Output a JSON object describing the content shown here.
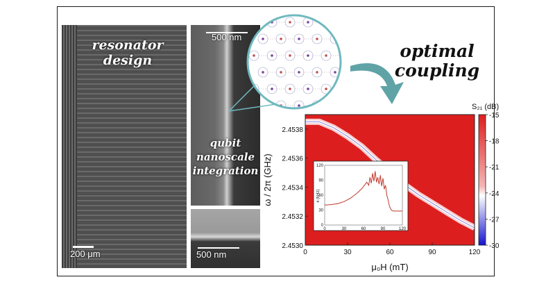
{
  "labels": {
    "resonator": [
      "resonator",
      "design"
    ],
    "qubit": [
      "qubit",
      "nanoscale",
      "integration"
    ],
    "title": [
      "optimal",
      "coupling"
    ]
  },
  "scale_bars": {
    "resonator": "200 μm",
    "qubit_top": "500 nm",
    "qubit_bottom": "500 nm"
  },
  "colors": {
    "heatmap_background": "#dd1e1e",
    "arrow": "#5fa3a7",
    "circle_border": "#6fb9bf",
    "dispersion_line": "#ffffff",
    "inset_line": "#c0392b"
  },
  "chart_data": [
    {
      "type": "heatmap",
      "title": "",
      "xlabel": "μ₀H (mT)",
      "ylabel": "ω / 2π (GHz)",
      "xlim": [
        0,
        120
      ],
      "ylim": [
        2.453,
        2.4539
      ],
      "x_ticks": [
        "0",
        "30",
        "60",
        "90",
        "120"
      ],
      "y_ticks": [
        "2.4530",
        "2.4532",
        "2.4534",
        "2.4536",
        "2.4538"
      ],
      "colorbar": {
        "label": "S₂₁ (dB)",
        "range": [
          -30,
          -15
        ],
        "ticks": [
          "-15",
          "-18",
          "-21",
          "-24",
          "-27",
          "-30"
        ],
        "colors": [
          "#dd1e1e",
          "#ffffff",
          "#1515cc"
        ]
      },
      "resonance_curve": {
        "x": [
          0,
          10,
          20,
          30,
          40,
          50,
          60,
          70,
          80,
          90,
          100,
          110,
          120
        ],
        "y": [
          2.45385,
          2.45385,
          2.45381,
          2.45375,
          2.45368,
          2.45359,
          2.45351,
          2.45342,
          2.45335,
          2.45329,
          2.45323,
          2.45317,
          2.45312
        ]
      }
    },
    {
      "type": "line",
      "title": "",
      "xlabel": "",
      "ylabel": "κ (kHz)",
      "xlim": [
        0,
        120
      ],
      "ylim": [
        0,
        120
      ],
      "x_ticks": [
        "0",
        "30",
        "60",
        "90",
        "120"
      ],
      "y_ticks": [
        "0",
        "30",
        "60",
        "90",
        "120"
      ],
      "series": [
        {
          "x": [
            0,
            10,
            20,
            30,
            40,
            50,
            58,
            65,
            68,
            70,
            72,
            74,
            76,
            78,
            80,
            82,
            84,
            86,
            88,
            90,
            92,
            94,
            96,
            98,
            100,
            103,
            106,
            110,
            115,
            120
          ],
          "y": [
            40,
            41,
            43,
            47,
            54,
            64,
            74,
            86,
            80,
            96,
            84,
            104,
            88,
            108,
            86,
            96,
            82,
            100,
            78,
            94,
            72,
            80,
            60,
            50,
            38,
            30,
            28,
            28,
            28,
            28
          ]
        }
      ]
    }
  ]
}
